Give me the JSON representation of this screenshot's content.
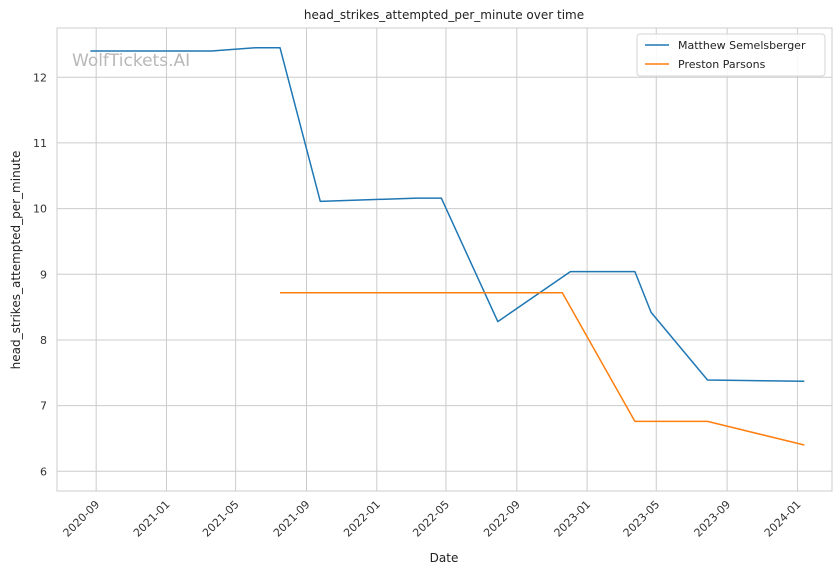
{
  "chart_data": {
    "type": "line",
    "title": "head_strikes_attempted_per_minute over time",
    "xlabel": "Date",
    "ylabel": "head_strikes_attempted_per_minute",
    "watermark": "WolfTickets.AI",
    "x_ticks": [
      "2020-09",
      "2021-01",
      "2021-05",
      "2021-09",
      "2022-01",
      "2022-05",
      "2022-09",
      "2023-01",
      "2023-05",
      "2023-09",
      "2024-01"
    ],
    "y_ticks": [
      6,
      7,
      8,
      9,
      10,
      11,
      12
    ],
    "xlim": [
      "2020-06-25",
      "2024-03-01"
    ],
    "ylim": [
      5.7,
      12.75
    ],
    "grid": true,
    "legend_position": "top-right",
    "series": [
      {
        "name": "Matthew Semelsberger",
        "color": "#1f77b4",
        "points": [
          {
            "x": "2020-08-22",
            "y": 12.4
          },
          {
            "x": "2021-03-20",
            "y": 12.4
          },
          {
            "x": "2021-06-05",
            "y": 12.45
          },
          {
            "x": "2021-07-17",
            "y": 12.45
          },
          {
            "x": "2021-09-25",
            "y": 10.11
          },
          {
            "x": "2022-03-12",
            "y": 10.16
          },
          {
            "x": "2022-04-23",
            "y": 10.16
          },
          {
            "x": "2022-07-30",
            "y": 8.28
          },
          {
            "x": "2022-12-03",
            "y": 9.04
          },
          {
            "x": "2023-03-25",
            "y": 9.04
          },
          {
            "x": "2023-04-22",
            "y": 8.42
          },
          {
            "x": "2023-07-29",
            "y": 7.39
          },
          {
            "x": "2024-01-13",
            "y": 7.37
          }
        ]
      },
      {
        "name": "Preston Parsons",
        "color": "#ff7f0e",
        "points": [
          {
            "x": "2021-07-17",
            "y": 8.72
          },
          {
            "x": "2022-11-19",
            "y": 8.72
          },
          {
            "x": "2023-03-25",
            "y": 6.76
          },
          {
            "x": "2023-07-29",
            "y": 6.76
          },
          {
            "x": "2024-01-13",
            "y": 6.4
          }
        ]
      }
    ]
  }
}
